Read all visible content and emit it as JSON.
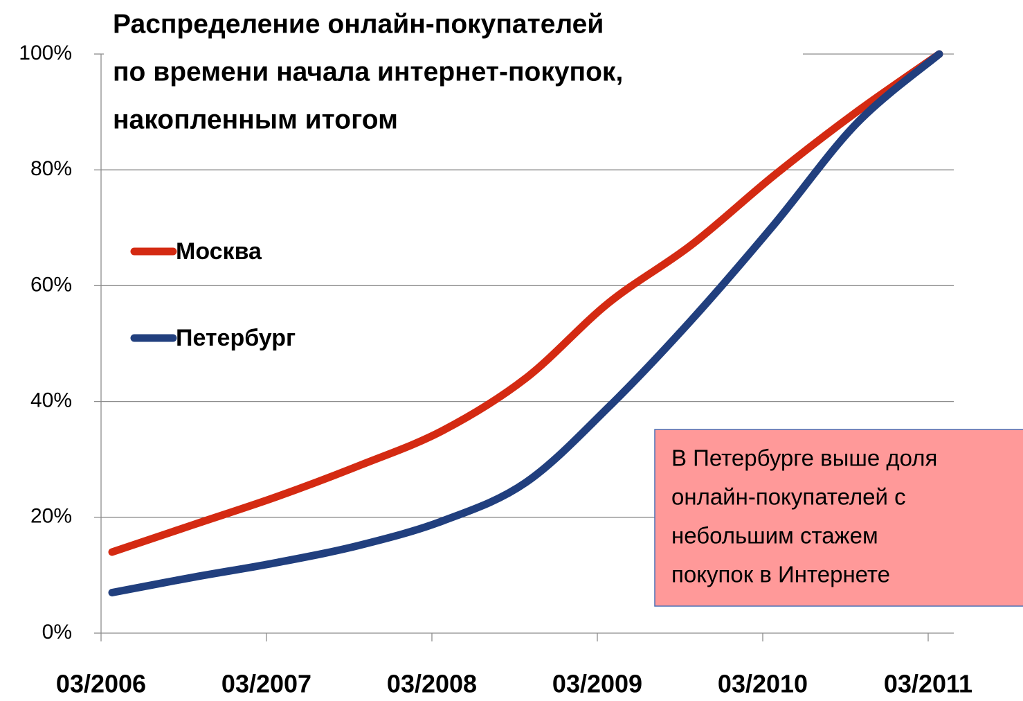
{
  "chart_data": {
    "type": "line",
    "title": [
      "Распределение онлайн-покупателей",
      "по времени начала интернет-покупок,",
      "накопленным итогом"
    ],
    "categories": [
      "03/2006",
      null,
      "03/2007",
      null,
      "03/2008",
      null,
      "03/2009",
      null,
      "03/2010",
      null,
      "03/2011"
    ],
    "series": [
      {
        "name": "Москва",
        "color": "#d42a12",
        "values": [
          14,
          18.8,
          23.6,
          29,
          35,
          44,
          57,
          67,
          79,
          90,
          100
        ]
      },
      {
        "name": "Петербург",
        "color": "#213f7e",
        "values": [
          7,
          9.7,
          12.2,
          15.2,
          19.4,
          26,
          39,
          54,
          70.5,
          88,
          100
        ]
      }
    ],
    "ylim": [
      0,
      100
    ],
    "yticks": [
      {
        "value": 0,
        "label": "0%"
      },
      {
        "value": 20,
        "label": "20%"
      },
      {
        "value": 40,
        "label": "40%"
      },
      {
        "value": 60,
        "label": "60%"
      },
      {
        "value": 80,
        "label": "80%"
      },
      {
        "value": 100,
        "label": "100%"
      }
    ],
    "grid": true,
    "legend": "left",
    "annotation": [
      "В Петербурге выше доля",
      "онлайн-покупателей с",
      "небольшим стажем",
      "покупок в Интернете"
    ]
  }
}
